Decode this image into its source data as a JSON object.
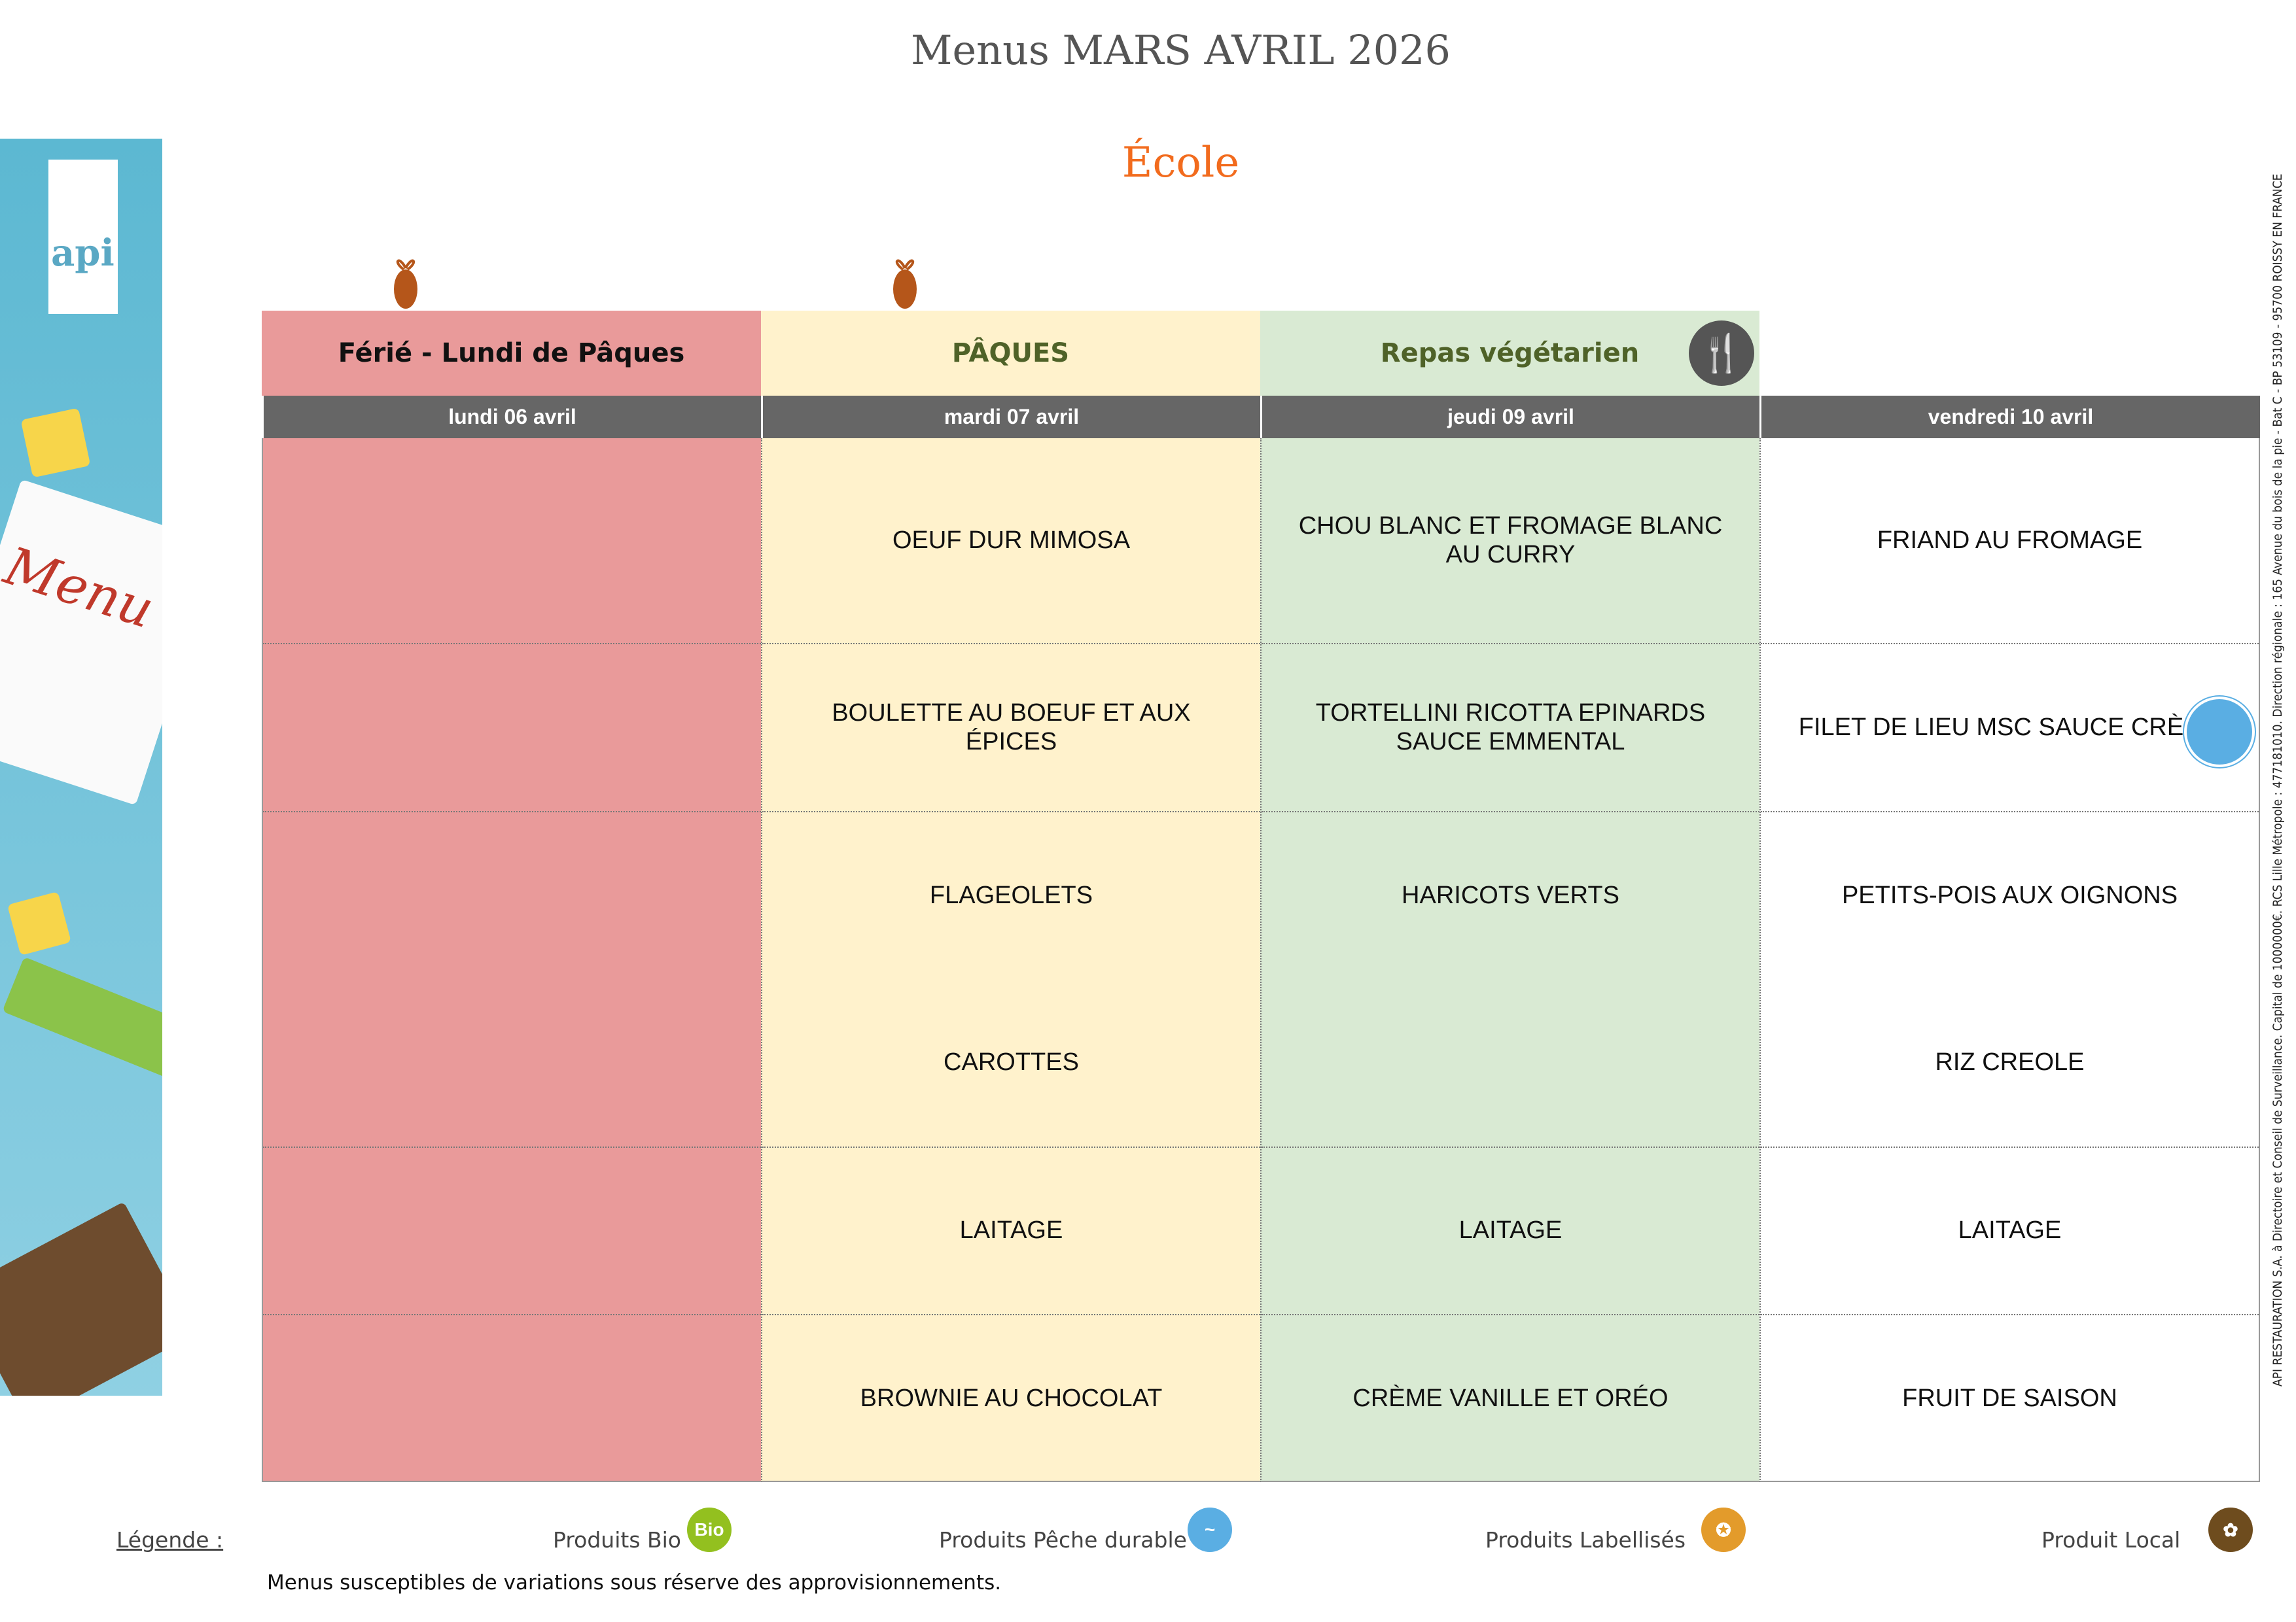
{
  "title": "Menus MARS AVRIL 2026",
  "subtitle": "École",
  "legal_text": "API RESTAURATION S.A. à Directoire et Conseil de Surveillance. Capital de 1000000€. RCS Lille Métropole : 477181010. Direction régionale : 165 Avenue du bois de la pie - Bat C - BP 53109 - 95700 ROISSY EN FRANCE",
  "logo_text": "api",
  "decor_text": "Menu",
  "colors": {
    "ferie": "#e99a9a",
    "paques": "#fff2cc",
    "vegetarien": "#d9ead3",
    "header": "#666666",
    "accent": "#f26b1d"
  },
  "days": [
    {
      "banner": "Férié - Lundi de Pâques",
      "date": "lundi 06 avril",
      "bg": "#e99a9a",
      "banner_color": "#111111",
      "egg": true,
      "items": [
        "",
        "",
        "",
        "",
        "",
        ""
      ]
    },
    {
      "banner": "PÂQUES",
      "date": "mardi 07 avril",
      "bg": "#fff2cc",
      "banner_color": "#4f6228",
      "egg": true,
      "items": [
        "OEUF DUR MIMOSA",
        "BOULETTE AU BOEUF ET AUX ÉPICES",
        "FLAGEOLETS",
        "CAROTTES",
        "LAITAGE",
        "BROWNIE AU CHOCOLAT"
      ]
    },
    {
      "banner": "Repas végétarien",
      "date": "jeudi 09 avril",
      "bg": "#d9ead3",
      "banner_color": "#4f6228",
      "icon": "vegetarian-fork-icon",
      "items": [
        "CHOU BLANC ET FROMAGE BLANC AU CURRY",
        "TORTELLINI RICOTTA EPINARDS SAUCE EMMENTAL",
        "HARICOTS VERTS",
        "",
        "LAITAGE",
        "CRÈME VANILLE ET ORÉO"
      ]
    },
    {
      "banner": "",
      "date": "vendredi 10 avril",
      "bg": "#ffffff",
      "banner_color": "#111111",
      "items": [
        "FRIAND AU FROMAGE",
        "FILET DE LIEU MSC SAUCE CRÈME",
        "PETITS-POIS AUX OIGNONS",
        "RIZ CREOLE",
        "LAITAGE",
        "FRUIT DE SAISON"
      ],
      "item_icons": {
        "1": "peche-durable-icon"
      }
    }
  ],
  "legend": {
    "label": "Légende :",
    "items": [
      {
        "label": "Produits Bio",
        "icon": "bio-icon",
        "glyph": "Bio",
        "color": "#93c01f"
      },
      {
        "label": "Produits Pêche durable",
        "icon": "peche-durable-icon",
        "glyph": "~",
        "color": "#5aaee3"
      },
      {
        "label": "Produits Labellisés",
        "icon": "label-icon",
        "glyph": "✪",
        "color": "#e39b2b"
      },
      {
        "label": "Produit Local",
        "icon": "local-icon",
        "glyph": "✿",
        "color": "#6e4c1e"
      }
    ]
  },
  "footnote": "Menus susceptibles de variations sous réserve des approvisionnements."
}
